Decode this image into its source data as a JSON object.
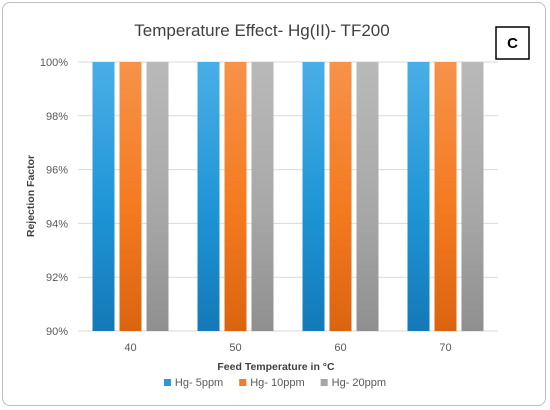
{
  "chart_data": {
    "type": "bar",
    "title": "Temperature Effect- Hg(II)- TF200",
    "panel_label": "C",
    "xlabel": "Feed Temperature in °C",
    "ylabel": "Rejection Factor",
    "categories": [
      "40",
      "50",
      "60",
      "70"
    ],
    "y_ticks": [
      "90%",
      "92%",
      "94%",
      "96%",
      "98%",
      "100%"
    ],
    "ylim": [
      90,
      100
    ],
    "grid": true,
    "legend_position": "bottom",
    "series": [
      {
        "name": "Hg- 5ppm",
        "values": [
          100,
          100,
          100,
          100
        ],
        "color": "#2a97d8"
      },
      {
        "name": "Hg- 10ppm",
        "values": [
          100,
          100,
          100,
          100
        ],
        "color": "#f47a24"
      },
      {
        "name": "Hg- 20ppm",
        "values": [
          100,
          100,
          100,
          100
        ],
        "color": "#a6a6a6"
      }
    ]
  }
}
